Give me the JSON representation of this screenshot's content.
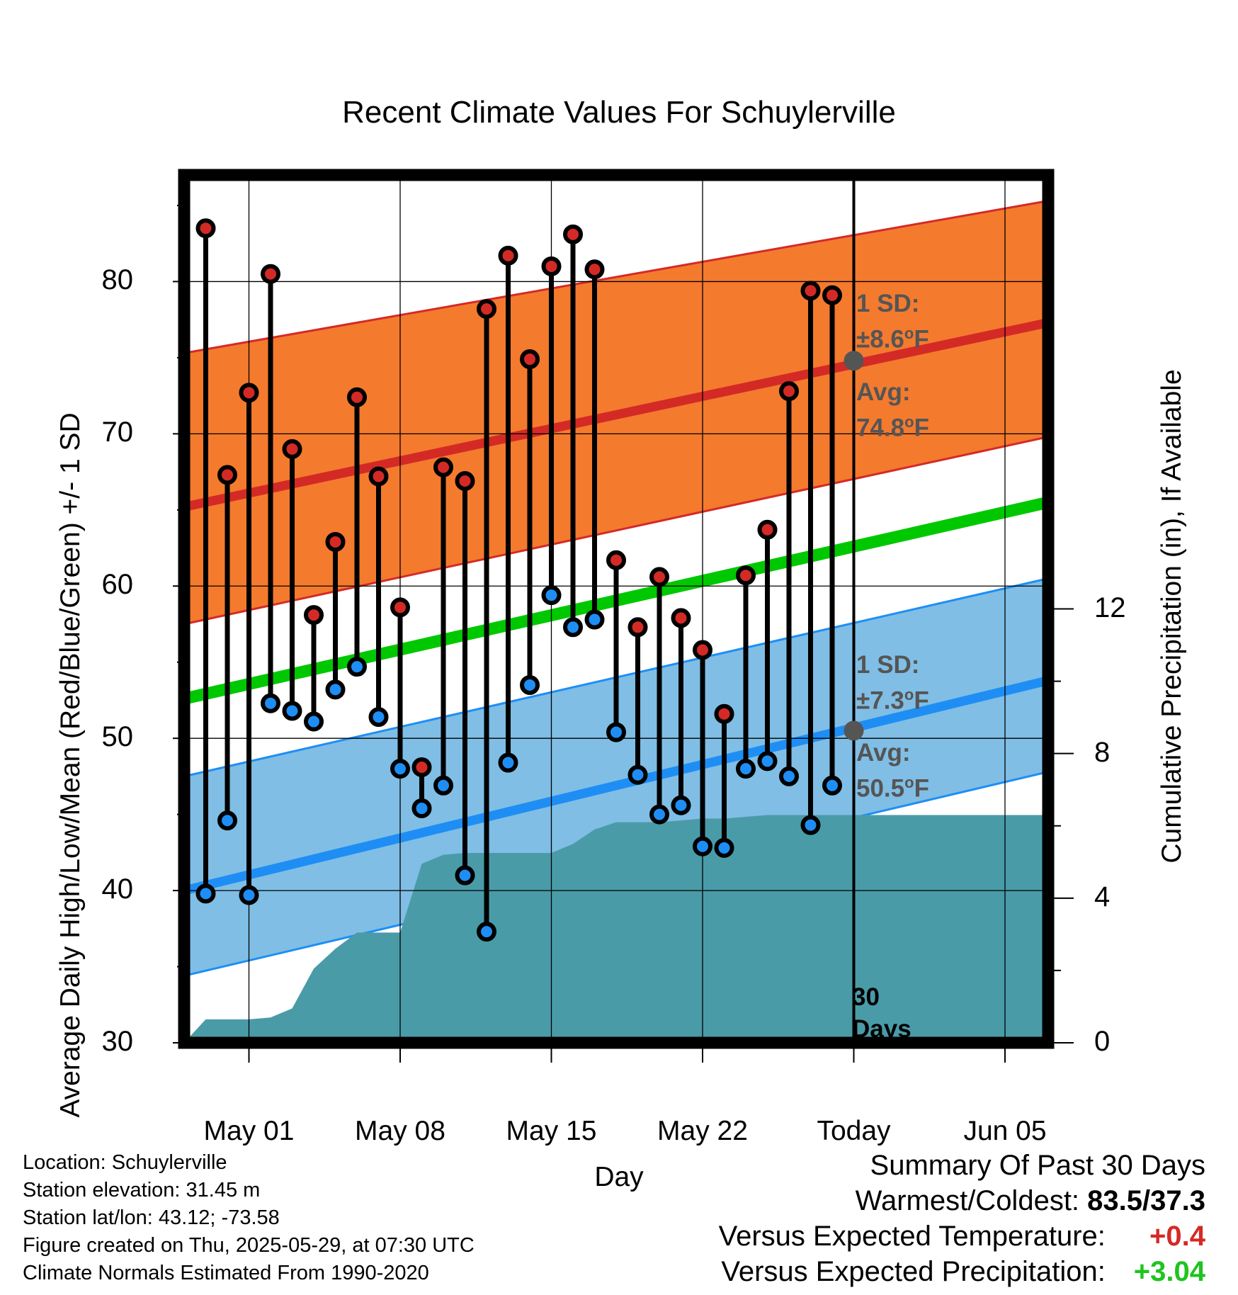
{
  "title": "Recent Climate Values For Schuylerville",
  "chart_data": {
    "type": "line",
    "title": "Recent Climate Values For Schuylerville",
    "xlabel": "Day",
    "ylabel": "Average Daily High/Low/Mean (Red/Blue/Green) +/- 1 SD",
    "y2label": "Cumulative Precipitation (in), If Available",
    "ylim": [
      30,
      87
    ],
    "y2lim": [
      0,
      24
    ],
    "yticks": [
      "30",
      "40",
      "50",
      "60",
      "70",
      "80"
    ],
    "y2ticks": [
      "0",
      "4",
      "8",
      "12"
    ],
    "xticks": [
      "May 01",
      "May 08",
      "May 15",
      "May 22",
      "Today",
      "Jun 05"
    ],
    "xlim": [
      "2025-04-28",
      "2025-06-07"
    ],
    "today": "2025-05-29",
    "dates": [
      "2025-04-29",
      "2025-04-30",
      "2025-05-01",
      "2025-05-02",
      "2025-05-03",
      "2025-05-04",
      "2025-05-05",
      "2025-05-06",
      "2025-05-07",
      "2025-05-08",
      "2025-05-09",
      "2025-05-10",
      "2025-05-11",
      "2025-05-12",
      "2025-05-13",
      "2025-05-14",
      "2025-05-15",
      "2025-05-16",
      "2025-05-17",
      "2025-05-18",
      "2025-05-19",
      "2025-05-20",
      "2025-05-21",
      "2025-05-22",
      "2025-05-23",
      "2025-05-24",
      "2025-05-25",
      "2025-05-26",
      "2025-05-27",
      "2025-05-28"
    ],
    "highs": [
      83.5,
      67.3,
      72.7,
      80.5,
      69.0,
      58.1,
      62.9,
      72.4,
      67.2,
      58.6,
      48.1,
      67.8,
      66.9,
      78.2,
      81.7,
      74.9,
      81.0,
      83.1,
      80.8,
      61.7,
      57.3,
      60.6,
      57.9,
      55.8,
      51.6,
      60.7,
      63.7,
      72.8,
      79.4,
      79.1
    ],
    "lows": [
      39.8,
      44.6,
      39.7,
      52.3,
      51.8,
      51.1,
      53.2,
      54.7,
      51.4,
      48.0,
      45.4,
      46.9,
      41.0,
      37.3,
      48.4,
      53.5,
      59.4,
      57.3,
      57.8,
      50.4,
      47.6,
      45.0,
      45.6,
      42.9,
      42.8,
      48.0,
      48.5,
      47.5,
      44.3,
      46.9
    ],
    "series": [
      {
        "name": "Average High",
        "x": [
          "2025-04-28",
          "2025-06-07"
        ],
        "values": [
          65.2,
          77.3
        ]
      },
      {
        "name": "High +1 SD",
        "x": [
          "2025-04-28",
          "2025-06-07"
        ],
        "values": [
          75.3,
          85.3
        ]
      },
      {
        "name": "High -1 SD",
        "x": [
          "2025-04-28",
          "2025-06-07"
        ],
        "values": [
          57.5,
          69.8
        ]
      },
      {
        "name": "Average Mean",
        "x": [
          "2025-04-28",
          "2025-06-07"
        ],
        "values": [
          52.6,
          65.5
        ]
      },
      {
        "name": "Average Low",
        "x": [
          "2025-04-28",
          "2025-06-07"
        ],
        "values": [
          40.0,
          53.8
        ]
      },
      {
        "name": "Low +1 SD",
        "x": [
          "2025-04-28",
          "2025-06-07"
        ],
        "values": [
          47.5,
          60.5
        ]
      },
      {
        "name": "Low -1 SD",
        "x": [
          "2025-04-28",
          "2025-06-07"
        ],
        "values": [
          34.4,
          47.8
        ]
      }
    ],
    "precip_dates": [
      "2025-04-28",
      "2025-04-29",
      "2025-05-01",
      "2025-05-02",
      "2025-05-03",
      "2025-05-04",
      "2025-05-05",
      "2025-05-06",
      "2025-05-07",
      "2025-05-08",
      "2025-05-09",
      "2025-05-10",
      "2025-05-11",
      "2025-05-12",
      "2025-05-13",
      "2025-05-14",
      "2025-05-15",
      "2025-05-16",
      "2025-05-17",
      "2025-05-18",
      "2025-05-19",
      "2025-05-20",
      "2025-05-21",
      "2025-05-22",
      "2025-05-23",
      "2025-05-24",
      "2025-05-25",
      "2025-05-26",
      "2025-05-27",
      "2025-05-28",
      "2025-05-29",
      "2025-06-07"
    ],
    "precip_cumulative": [
      0.0,
      0.65,
      0.65,
      0.7,
      0.95,
      2.05,
      2.6,
      3.05,
      3.05,
      3.05,
      4.95,
      5.2,
      5.25,
      5.25,
      5.25,
      5.25,
      5.25,
      5.5,
      5.9,
      6.1,
      6.1,
      6.1,
      6.15,
      6.2,
      6.2,
      6.25,
      6.3,
      6.3,
      6.3,
      6.3,
      6.3,
      6.3
    ],
    "annotations": {
      "high_sd": "±8.6",
      "high_avg": "74.8",
      "low_sd": "±7.3",
      "low_avg": "50.5",
      "today_high_avg": 74.8,
      "today_low_avg": 50.5
    },
    "colors": {
      "high_band": "#f47a2e",
      "high_line": "#d42a26",
      "low_band": "#80bee5",
      "low_line": "#1e8ef5",
      "mean_line": "#00c800",
      "precip": "#4a9ba8",
      "high_marker": "#d42a26",
      "low_marker": "#1e8ef5",
      "today_marker": "#555555"
    }
  },
  "annotations": {
    "sd_label": "1 SD:",
    "avg_label": "Avg:",
    "high_sd": "±8.6",
    "high_avg": "74.8",
    "low_sd": "±7.3",
    "low_avg": "50.5",
    "unit": "F",
    "degree": "o",
    "days_count": "30",
    "days_word": "Days"
  },
  "meta": {
    "location": "Location: Schuylerville",
    "elevation": "Station elevation: 31.45 m",
    "latlon": "Station lat/lon: 43.12; -73.58",
    "created": "Figure created on Thu, 2025-05-29, at 07:30 UTC",
    "normals": "Climate Normals Estimated From 1990-2020"
  },
  "summary": {
    "heading": "Summary Of Past 30 Days",
    "warm_label": "Warmest/Coldest:",
    "warm_value": "83.5/37.3",
    "temp_label": "Versus Expected Temperature:",
    "temp_value": "+0.4",
    "temp_color": "#d42a26",
    "precip_label": "Versus Expected Precipitation:",
    "precip_value": "+3.04",
    "precip_color": "#1fc41f"
  }
}
